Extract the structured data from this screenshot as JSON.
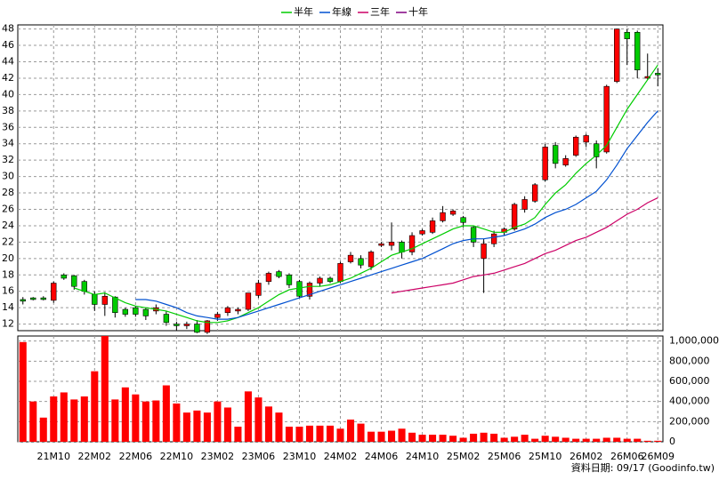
{
  "chart_data": {
    "type": "candlestick",
    "categories": [
      null,
      null,
      null,
      "21M10",
      null,
      null,
      null,
      "22M02",
      null,
      null,
      null,
      "22M06",
      null,
      null,
      null,
      "22M10",
      null,
      null,
      null,
      "23M02",
      null,
      null,
      null,
      "23M06",
      null,
      null,
      null,
      "23M10",
      null,
      null,
      null,
      "24M02",
      null,
      null,
      null,
      "24M06",
      null,
      null,
      null,
      "24M10",
      null,
      null,
      null,
      "25M02",
      null,
      null,
      null,
      "25M06",
      null,
      null,
      null,
      "25M10",
      null,
      null,
      null,
      "26M02",
      null,
      null,
      null,
      "26M06",
      null,
      null,
      "26M09"
    ],
    "open": [
      15.0,
      15.2,
      15.2,
      14.9,
      18.0,
      17.9,
      17.2,
      15.6,
      14.4,
      15.3,
      13.8,
      14.0,
      13.8,
      13.6,
      13.2,
      12.0,
      11.8,
      12.0,
      11.0,
      12.8,
      13.4,
      13.6,
      13.8,
      15.5,
      17.2,
      18.4,
      18.0,
      17.2,
      15.4,
      17.0,
      17.6,
      17.2,
      19.6,
      20.0,
      19.0,
      21.6,
      21.6,
      22.0,
      20.8,
      23.0,
      23.2,
      24.6,
      25.4,
      25.0,
      23.8,
      20.0,
      21.8,
      23.2,
      23.6,
      26.0,
      27.0,
      29.6,
      33.8,
      31.4,
      32.6,
      34.2,
      34.0,
      33.0,
      41.6,
      47.6,
      47.6,
      42.0,
      42.6
    ],
    "high": [
      15.3,
      15.3,
      15.4,
      17.2,
      18.2,
      18.0,
      17.4,
      16.0,
      15.9,
      15.4,
      14.0,
      14.2,
      14.0,
      14.4,
      13.6,
      12.3,
      12.3,
      12.5,
      12.5,
      13.5,
      14.2,
      14.0,
      15.8,
      17.4,
      18.4,
      18.6,
      18.2,
      17.4,
      17.2,
      17.8,
      17.8,
      19.6,
      20.8,
      20.4,
      21.0,
      22.0,
      24.4,
      22.2,
      23.2,
      23.6,
      25.0,
      26.4,
      26.0,
      25.2,
      24.0,
      22.4,
      23.4,
      23.8,
      26.8,
      27.6,
      29.2,
      34.0,
      34.2,
      32.6,
      35.0,
      35.2,
      34.4,
      41.2,
      48.0,
      48.0,
      47.8,
      45.0,
      43.2
    ],
    "low": [
      14.4,
      14.9,
      14.9,
      14.6,
      17.4,
      16.2,
      15.6,
      13.6,
      13.0,
      12.8,
      12.9,
      12.9,
      12.5,
      13.2,
      11.8,
      11.2,
      11.4,
      10.9,
      10.8,
      12.4,
      13.0,
      13.2,
      13.6,
      15.2,
      16.8,
      17.6,
      16.4,
      15.2,
      15.0,
      16.6,
      17.0,
      17.0,
      19.4,
      18.8,
      18.6,
      21.4,
      21.0,
      20.0,
      20.4,
      22.8,
      23.0,
      24.4,
      25.2,
      23.8,
      21.4,
      15.8,
      21.4,
      22.8,
      23.4,
      25.6,
      26.8,
      29.4,
      31.0,
      31.2,
      32.4,
      33.6,
      31.0,
      32.8,
      41.4,
      43.6,
      42.0,
      41.8,
      41.0
    ],
    "close": [
      14.8,
      15.0,
      15.0,
      17.0,
      17.6,
      16.6,
      16.0,
      14.4,
      15.4,
      13.4,
      13.2,
      13.2,
      13.0,
      14.0,
      12.2,
      11.8,
      12.0,
      11.0,
      12.4,
      13.2,
      14.0,
      13.8,
      15.8,
      17.0,
      18.2,
      17.8,
      16.8,
      15.4,
      17.0,
      17.6,
      17.2,
      19.4,
      20.4,
      19.2,
      20.8,
      21.8,
      22.0,
      20.8,
      22.8,
      23.4,
      24.6,
      25.6,
      25.8,
      24.4,
      22.0,
      21.8,
      23.0,
      23.6,
      26.6,
      27.2,
      29.0,
      33.6,
      31.6,
      32.2,
      34.8,
      35.0,
      32.4,
      41.0,
      48.0,
      46.8,
      43.0,
      42.2,
      42.4
    ],
    "up_color": "#ff0000",
    "down_color": "#00cc00",
    "ylim": [
      11.2,
      48.5
    ],
    "yticks": [
      12,
      14,
      16,
      18,
      20,
      22,
      24,
      26,
      28,
      30,
      32,
      34,
      36,
      38,
      40,
      42,
      44,
      46,
      48
    ],
    "grid": true,
    "series": [
      {
        "name": "半年",
        "color": "#00cc00",
        "values": [
          null,
          null,
          null,
          null,
          null,
          16.4,
          16.0,
          15.6,
          15.8,
          15.2,
          14.6,
          14.2,
          14.0,
          13.8,
          13.6,
          13.2,
          12.8,
          12.4,
          12.2,
          12.2,
          12.4,
          12.8,
          13.4,
          14.0,
          14.8,
          15.6,
          16.2,
          16.4,
          16.6,
          16.6,
          16.8,
          17.2,
          17.6,
          18.2,
          18.8,
          19.6,
          20.4,
          20.8,
          21.2,
          21.8,
          22.4,
          23.0,
          23.6,
          24.0,
          24.0,
          23.6,
          23.2,
          23.2,
          23.8,
          24.2,
          25.0,
          26.6,
          28.0,
          29.0,
          30.4,
          31.6,
          32.6,
          33.8,
          36.0,
          38.2,
          40.0,
          41.8,
          43.6
        ]
      },
      {
        "name": "年線",
        "color": "#0050d0",
        "values": [
          null,
          null,
          null,
          null,
          null,
          null,
          null,
          null,
          null,
          null,
          null,
          15.0,
          15.0,
          14.8,
          14.4,
          14.0,
          13.4,
          13.0,
          12.8,
          12.6,
          12.6,
          12.8,
          13.2,
          13.6,
          14.0,
          14.4,
          14.8,
          15.2,
          15.6,
          16.0,
          16.4,
          16.8,
          17.2,
          17.6,
          18.0,
          18.4,
          18.8,
          19.2,
          19.6,
          20.0,
          20.6,
          21.2,
          21.8,
          22.2,
          22.4,
          22.4,
          22.6,
          22.8,
          23.2,
          23.6,
          24.2,
          25.0,
          25.6,
          26.0,
          26.6,
          27.4,
          28.2,
          29.6,
          31.4,
          33.4,
          35.0,
          36.6,
          38.0
        ]
      },
      {
        "name": "三年",
        "color": "#cc0066",
        "values": [
          null,
          null,
          null,
          null,
          null,
          null,
          null,
          null,
          null,
          null,
          null,
          null,
          null,
          null,
          null,
          null,
          null,
          null,
          null,
          null,
          null,
          null,
          null,
          null,
          null,
          null,
          null,
          null,
          null,
          null,
          null,
          null,
          null,
          null,
          null,
          null,
          15.8,
          16.0,
          16.2,
          16.4,
          16.6,
          16.8,
          17.0,
          17.4,
          17.8,
          18.0,
          18.2,
          18.6,
          19.0,
          19.4,
          20.0,
          20.6,
          21.0,
          21.6,
          22.2,
          22.6,
          23.2,
          23.8,
          24.6,
          25.4,
          26.0,
          26.8,
          27.4
        ]
      },
      {
        "name": "十年",
        "color": "#800080",
        "values": [
          null,
          null,
          null,
          null,
          null,
          null,
          null,
          null,
          null,
          null,
          null,
          null,
          null,
          null,
          null,
          null,
          null,
          null,
          null,
          null,
          null,
          null,
          null,
          null,
          null,
          null,
          null,
          null,
          null,
          null,
          null,
          null,
          null,
          null,
          null,
          null,
          null,
          null,
          null,
          null,
          null,
          null,
          null,
          null,
          null,
          null,
          null,
          null,
          null,
          null,
          null,
          null,
          null,
          null,
          null,
          null,
          null,
          null,
          null,
          null,
          null,
          null,
          null
        ]
      }
    ],
    "volume": {
      "color": "#ff0000",
      "values": [
        990000,
        400000,
        240000,
        450000,
        490000,
        420000,
        450000,
        700000,
        1050000,
        420000,
        540000,
        470000,
        400000,
        410000,
        560000,
        380000,
        290000,
        310000,
        290000,
        400000,
        340000,
        150000,
        500000,
        440000,
        350000,
        290000,
        150000,
        150000,
        160000,
        160000,
        160000,
        130000,
        220000,
        180000,
        100000,
        100000,
        110000,
        130000,
        90000,
        70000,
        70000,
        70000,
        60000,
        40000,
        80000,
        90000,
        80000,
        40000,
        50000,
        70000,
        30000,
        60000,
        50000,
        40000,
        30000,
        30000,
        30000,
        40000,
        40000,
        30000,
        30000,
        10000,
        10000
      ],
      "ylim": [
        0,
        1050000
      ],
      "yticks": [
        0,
        {
          "value": 200000,
          "label": "200,000"
        },
        {
          "value": 400000,
          "label": "400,000"
        },
        {
          "value": 600000,
          "label": "600,000"
        },
        {
          "value": 800000,
          "label": "800,000"
        },
        {
          "value": 1000000,
          "label": "1,000,000"
        }
      ]
    },
    "footer": {
      "date": "資料日期: 09/17",
      "source": "(Goodinfo.tw)"
    }
  }
}
